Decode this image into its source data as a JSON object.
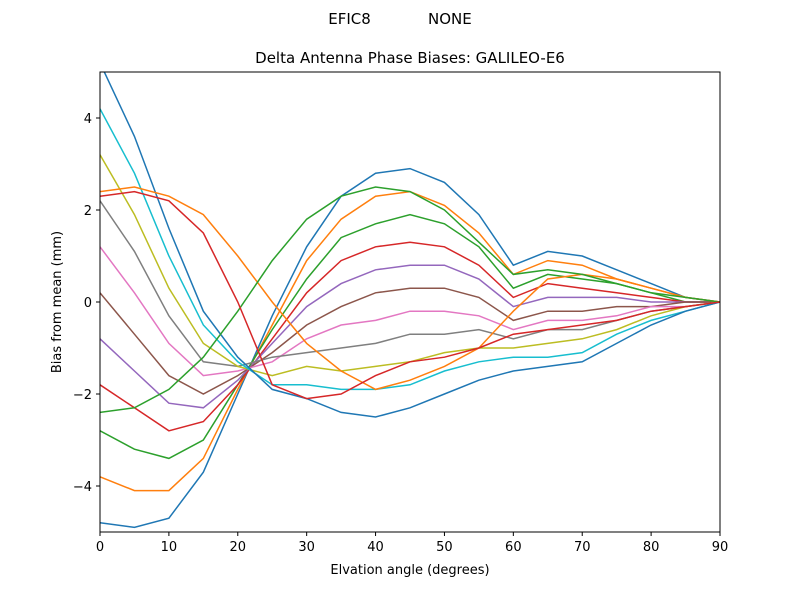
{
  "chart_data": {
    "type": "line",
    "suptitle": "EFIC8            NONE",
    "title": "Delta Antenna Phase Biases: GALILEO-E6",
    "xlabel": "Elvation angle (degrees)",
    "ylabel": "Bias from mean (mm)",
    "x": [
      0,
      5,
      10,
      15,
      20,
      25,
      30,
      35,
      40,
      45,
      50,
      55,
      60,
      65,
      70,
      75,
      80,
      85,
      90
    ],
    "xlim": [
      0,
      90
    ],
    "ylim": [
      -5,
      5
    ],
    "xticks": [
      0,
      10,
      20,
      30,
      40,
      50,
      60,
      70,
      80,
      90
    ],
    "yticks": [
      {
        "value": -4,
        "label": "−4"
      },
      {
        "value": -2,
        "label": "−2"
      },
      0,
      2,
      4
    ],
    "series": [
      {
        "color": "#1f77b4",
        "values": [
          -4.8,
          -4.9,
          -4.7,
          -3.7,
          -2.0,
          -0.3,
          1.2,
          2.3,
          2.8,
          2.9,
          2.6,
          1.9,
          0.8,
          1.1,
          1.0,
          0.7,
          0.4,
          0.1,
          0
        ]
      },
      {
        "color": "#ff7f0e",
        "values": [
          -3.8,
          -4.1,
          -4.1,
          -3.4,
          -1.9,
          -0.5,
          0.9,
          1.8,
          2.3,
          2.4,
          2.1,
          1.5,
          0.6,
          0.9,
          0.8,
          0.5,
          0.3,
          0.1,
          0
        ]
      },
      {
        "color": "#2ca02c",
        "values": [
          -2.8,
          -3.2,
          -3.4,
          -3.0,
          -1.8,
          -0.6,
          0.5,
          1.4,
          1.7,
          1.9,
          1.7,
          1.2,
          0.3,
          0.6,
          0.5,
          0.4,
          0.2,
          0.0,
          0
        ]
      },
      {
        "color": "#d62728",
        "values": [
          -1.8,
          -2.3,
          -2.8,
          -2.6,
          -1.8,
          -0.8,
          0.2,
          0.9,
          1.2,
          1.3,
          1.2,
          0.8,
          0.1,
          0.4,
          0.3,
          0.2,
          0.1,
          0,
          0
        ]
      },
      {
        "color": "#9467bd",
        "values": [
          -0.8,
          -1.5,
          -2.2,
          -2.3,
          -1.7,
          -0.9,
          -0.1,
          0.4,
          0.7,
          0.8,
          0.8,
          0.5,
          -0.1,
          0.1,
          0.1,
          0.1,
          0.0,
          0.0,
          0
        ]
      },
      {
        "color": "#8c564b",
        "values": [
          0.2,
          -0.7,
          -1.6,
          -2.0,
          -1.6,
          -1.1,
          -0.5,
          -0.1,
          0.2,
          0.3,
          0.3,
          0.1,
          -0.4,
          -0.2,
          -0.2,
          -0.1,
          -0.1,
          0,
          0
        ]
      },
      {
        "color": "#e377c2",
        "values": [
          1.2,
          0.2,
          -0.9,
          -1.6,
          -1.5,
          -1.3,
          -0.8,
          -0.5,
          -0.4,
          -0.2,
          -0.2,
          -0.3,
          -0.6,
          -0.4,
          -0.4,
          -0.3,
          -0.1,
          -0.1,
          0
        ]
      },
      {
        "color": "#7f7f7f",
        "values": [
          2.2,
          1.1,
          -0.3,
          -1.3,
          -1.4,
          -1.2,
          -1.1,
          -1.0,
          -0.9,
          -0.7,
          -0.7,
          -0.6,
          -0.8,
          -0.6,
          -0.6,
          -0.4,
          -0.2,
          -0.1,
          0
        ]
      },
      {
        "color": "#bcbd22",
        "values": [
          3.2,
          1.9,
          0.3,
          -0.9,
          -1.4,
          -1.6,
          -1.4,
          -1.5,
          -1.4,
          -1.3,
          -1.1,
          -1.0,
          -1.0,
          -0.9,
          -0.8,
          -0.6,
          -0.3,
          -0.1,
          0
        ]
      },
      {
        "color": "#17becf",
        "values": [
          4.2,
          2.8,
          1.0,
          -0.5,
          -1.3,
          -1.8,
          -1.8,
          -1.9,
          -1.9,
          -1.8,
          -1.5,
          -1.3,
          -1.2,
          -1.2,
          -1.1,
          -0.7,
          -0.4,
          -0.2,
          0
        ]
      },
      {
        "color": "#1f77b4",
        "values": [
          5.2,
          3.6,
          1.6,
          -0.2,
          -1.2,
          -1.9,
          -2.1,
          -2.4,
          -2.5,
          -2.3,
          -2.0,
          -1.7,
          -1.5,
          -1.4,
          -1.3,
          -0.9,
          -0.5,
          -0.2,
          0
        ]
      },
      {
        "color": "#ff7f0e",
        "values": [
          2.4,
          2.5,
          2.3,
          1.9,
          1.0,
          0.0,
          -0.9,
          -1.5,
          -1.9,
          -1.7,
          -1.4,
          -1.0,
          -0.2,
          0.5,
          0.6,
          0.5,
          0.3,
          0.1,
          0
        ]
      },
      {
        "color": "#2ca02c",
        "values": [
          -2.4,
          -2.3,
          -1.9,
          -1.2,
          -0.2,
          0.9,
          1.8,
          2.3,
          2.5,
          2.4,
          2.0,
          1.3,
          0.6,
          0.7,
          0.6,
          0.4,
          0.2,
          0.1,
          0
        ]
      },
      {
        "color": "#d62728",
        "values": [
          2.3,
          2.4,
          2.2,
          1.5,
          0.0,
          -1.8,
          -2.1,
          -2.0,
          -1.6,
          -1.3,
          -1.2,
          -1.0,
          -0.7,
          -0.6,
          -0.5,
          -0.4,
          -0.2,
          -0.1,
          0
        ]
      }
    ]
  }
}
